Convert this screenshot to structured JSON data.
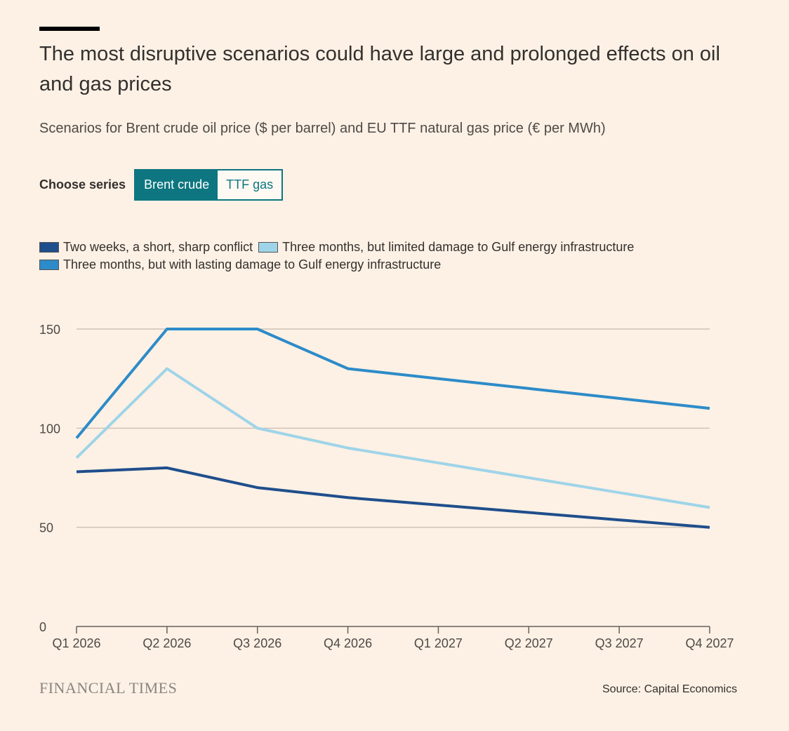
{
  "header": {
    "title": "The most disruptive scenarios could have large and prolonged effects on oil and gas prices",
    "subtitle": "Scenarios for Brent crude oil price ($ per barrel) and EU TTF natural gas price (€ per MWh)"
  },
  "chooser": {
    "label": "Choose series",
    "options": [
      "Brent crude",
      "TTF gas"
    ],
    "selected": "Brent crude"
  },
  "footer": {
    "logo": "FINANCIAL TIMES",
    "source": "Source: Capital Economics"
  },
  "chart_data": {
    "type": "line",
    "title": "Scenarios for Brent crude oil price ($ per barrel)",
    "xlabel": "",
    "ylabel": "",
    "categories": [
      "Q1 2026",
      "Q2 2026",
      "Q3 2026",
      "Q4 2026",
      "Q1 2027",
      "Q2 2027",
      "Q3 2027",
      "Q4 2027"
    ],
    "ylim": [
      0,
      150
    ],
    "yticks": [
      0,
      50,
      100,
      150
    ],
    "grid": true,
    "series": [
      {
        "name": "Two weeks, a short, sharp conflict",
        "color": "#1f4e8c",
        "values": [
          78,
          80,
          70,
          65,
          61.25,
          57.5,
          53.75,
          50
        ]
      },
      {
        "name": "Three months, but limited damage to Gulf energy infrastructure",
        "color": "#9fd4e8",
        "values": [
          85,
          130,
          100,
          90,
          82.5,
          75,
          67.5,
          60
        ]
      },
      {
        "name": "Three months, but with lasting damage to Gulf energy infrastructure",
        "color": "#2d8bc9",
        "values": [
          95,
          150,
          150,
          130,
          125,
          120,
          115,
          110
        ]
      }
    ]
  }
}
